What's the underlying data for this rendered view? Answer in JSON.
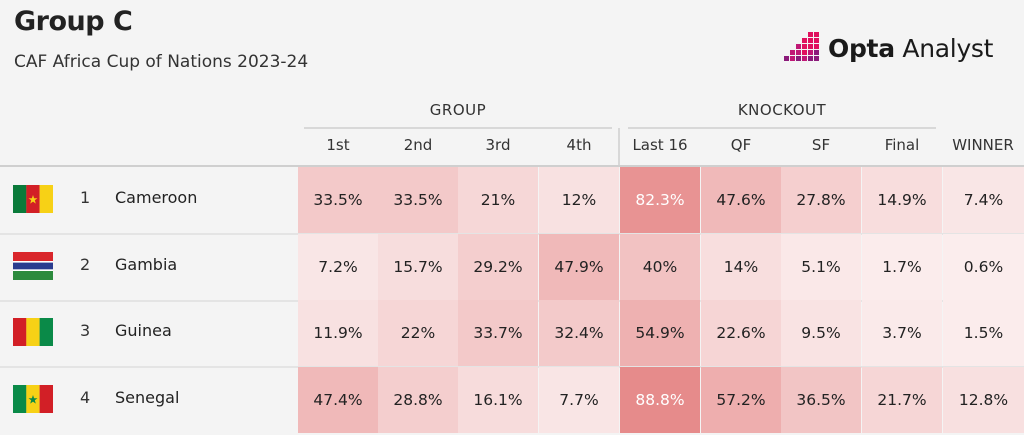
{
  "header": {
    "title": "Group C",
    "subtitle": "CAF Africa Cup of Nations 2023-24"
  },
  "logo": {
    "brand_bold": "Opta",
    "brand_light": " Analyst",
    "icon": "opta-pixel-icon",
    "colors": [
      "#e0105e",
      "#c01775",
      "#8b1a7a"
    ]
  },
  "column_groups": {
    "group": "GROUP",
    "knockout": "KNOCKOUT"
  },
  "columns": [
    "1st",
    "2nd",
    "3rd",
    "4th",
    "Last 16",
    "QF",
    "SF",
    "Final",
    "WINNER"
  ],
  "teams": [
    {
      "rank": "1",
      "name": "Cameroon",
      "flag": "cameroon-flag",
      "values": [
        "33.5%",
        "33.5%",
        "21%",
        "12%",
        "82.3%",
        "47.6%",
        "27.8%",
        "14.9%",
        "7.4%"
      ],
      "shade": [
        0.335,
        0.335,
        0.21,
        0.12,
        0.823,
        0.476,
        0.278,
        0.149,
        0.074
      ]
    },
    {
      "rank": "2",
      "name": "Gambia",
      "flag": "gambia-flag",
      "values": [
        "7.2%",
        "15.7%",
        "29.2%",
        "47.9%",
        "40%",
        "14%",
        "5.1%",
        "1.7%",
        "0.6%"
      ],
      "shade": [
        0.072,
        0.157,
        0.292,
        0.479,
        0.4,
        0.14,
        0.051,
        0.017,
        0.006
      ]
    },
    {
      "rank": "3",
      "name": "Guinea",
      "flag": "guinea-flag",
      "values": [
        "11.9%",
        "22%",
        "33.7%",
        "32.4%",
        "54.9%",
        "22.6%",
        "9.5%",
        "3.7%",
        "1.5%"
      ],
      "shade": [
        0.119,
        0.22,
        0.337,
        0.324,
        0.549,
        0.226,
        0.095,
        0.037,
        0.015
      ]
    },
    {
      "rank": "4",
      "name": "Senegal",
      "flag": "senegal-flag",
      "values": [
        "47.4%",
        "28.8%",
        "16.1%",
        "7.7%",
        "88.8%",
        "57.2%",
        "36.5%",
        "21.7%",
        "12.8%"
      ],
      "shade": [
        0.474,
        0.288,
        0.161,
        0.077,
        0.888,
        0.572,
        0.365,
        0.217,
        0.128
      ]
    }
  ],
  "colors": {
    "heat_low": "#fbeeee",
    "heat_high": "#e68a8a"
  }
}
